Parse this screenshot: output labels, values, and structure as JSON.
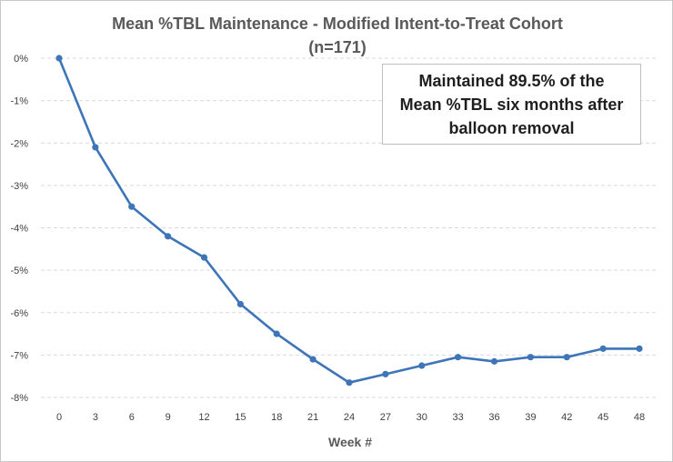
{
  "chart_data": {
    "type": "line",
    "title_line1": "Mean %TBL Maintenance - Modified Intent-to-Treat Cohort",
    "title_line2": "(n=171)",
    "xlabel": "Week #",
    "ylabel": "",
    "x": [
      0,
      3,
      6,
      9,
      12,
      15,
      18,
      21,
      24,
      27,
      30,
      33,
      36,
      39,
      42,
      45,
      48
    ],
    "x_tick_labels": [
      "0",
      "3",
      "6",
      "9",
      "12",
      "15",
      "18",
      "21",
      "24",
      "27",
      "30",
      "33",
      "36",
      "39",
      "42",
      "45",
      "48"
    ],
    "y_tick_labels": [
      "0%",
      "-1%",
      "-2%",
      "-3%",
      "-4%",
      "-5%",
      "-6%",
      "-7%",
      "-8%"
    ],
    "y_ticks": [
      0,
      -1,
      -2,
      -3,
      -4,
      -5,
      -6,
      -7,
      -8
    ],
    "ylim": [
      -8,
      0
    ],
    "grid": "horizontal dashed",
    "series": [
      {
        "values": [
          0,
          -2.1,
          -3.5,
          -4.2,
          -4.7,
          -5.8,
          -6.5,
          -7.1,
          -7.65,
          -7.45,
          -7.25,
          -7.05,
          -7.15,
          -7.05,
          -7.05,
          -6.85,
          -6.85
        ],
        "color": "#3d75b8"
      }
    ],
    "annotation": "Maintained 89.5% of the\nMean %TBL six months after\nballoon removal"
  }
}
